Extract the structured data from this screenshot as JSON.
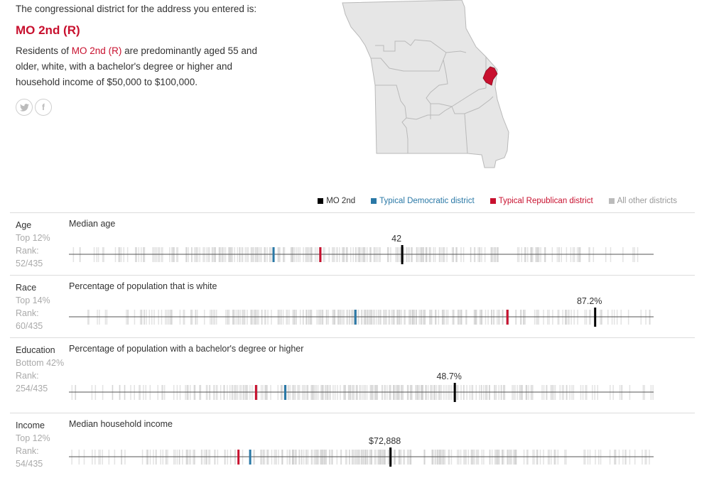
{
  "intro": {
    "lead": "The congressional district for the address you entered is:",
    "district": "MO 2nd (R)",
    "desc_before": "Residents of ",
    "desc_highlight": "MO 2nd (R)",
    "desc_after": " are predominantly aged 55 and older, white, with a bachelor's degree or higher and household income of $50,000 to $100,000."
  },
  "share": {
    "twitter": "twitter-icon",
    "facebook": "facebook-icon"
  },
  "legend": [
    {
      "label": "MO 2nd",
      "color": "#000000",
      "text_color": "#333333"
    },
    {
      "label": "Typical Democratic district",
      "color": "#2a78a6",
      "text_color": "#2a78a6"
    },
    {
      "label": "Typical Republican district",
      "color": "#c8102e",
      "text_color": "#c8102e"
    },
    {
      "label": "All other districts",
      "color": "#bbbbbb",
      "text_color": "#999999"
    }
  ],
  "colors": {
    "district": "#000000",
    "dem": "#2a78a6",
    "rep": "#c8102e",
    "other": "#cccccc",
    "accent": "#c8102e"
  },
  "rows": [
    {
      "stat": "Age",
      "rank_line1": "Top 12%",
      "rank_label": "Rank:",
      "rank": "52/435",
      "metric": "Median age",
      "value_label": "42",
      "district_pos": 0.57,
      "dem_pos": 0.35,
      "rep_pos": 0.43
    },
    {
      "stat": "Race",
      "rank_line1": "Top 14%",
      "rank_label": "Rank:",
      "rank": "60/435",
      "metric": "Percentage of population that is white",
      "value_label": "87.2%",
      "district_pos": 0.9,
      "dem_pos": 0.49,
      "rep_pos": 0.75
    },
    {
      "stat": "Education",
      "rank_line1": "Bottom 42%",
      "rank_label": "Rank:",
      "rank": "254/435",
      "metric": "Percentage of population with a bachelor's degree or higher",
      "value_label": "48.7%",
      "district_pos": 0.66,
      "dem_pos": 0.37,
      "rep_pos": 0.32
    },
    {
      "stat": "Income",
      "rank_line1": "Top 12%",
      "rank_label": "Rank:",
      "rank": "54/435",
      "metric": "Median household income",
      "value_label": "$72,888",
      "district_pos": 0.55,
      "dem_pos": 0.31,
      "rep_pos": 0.29
    }
  ]
}
